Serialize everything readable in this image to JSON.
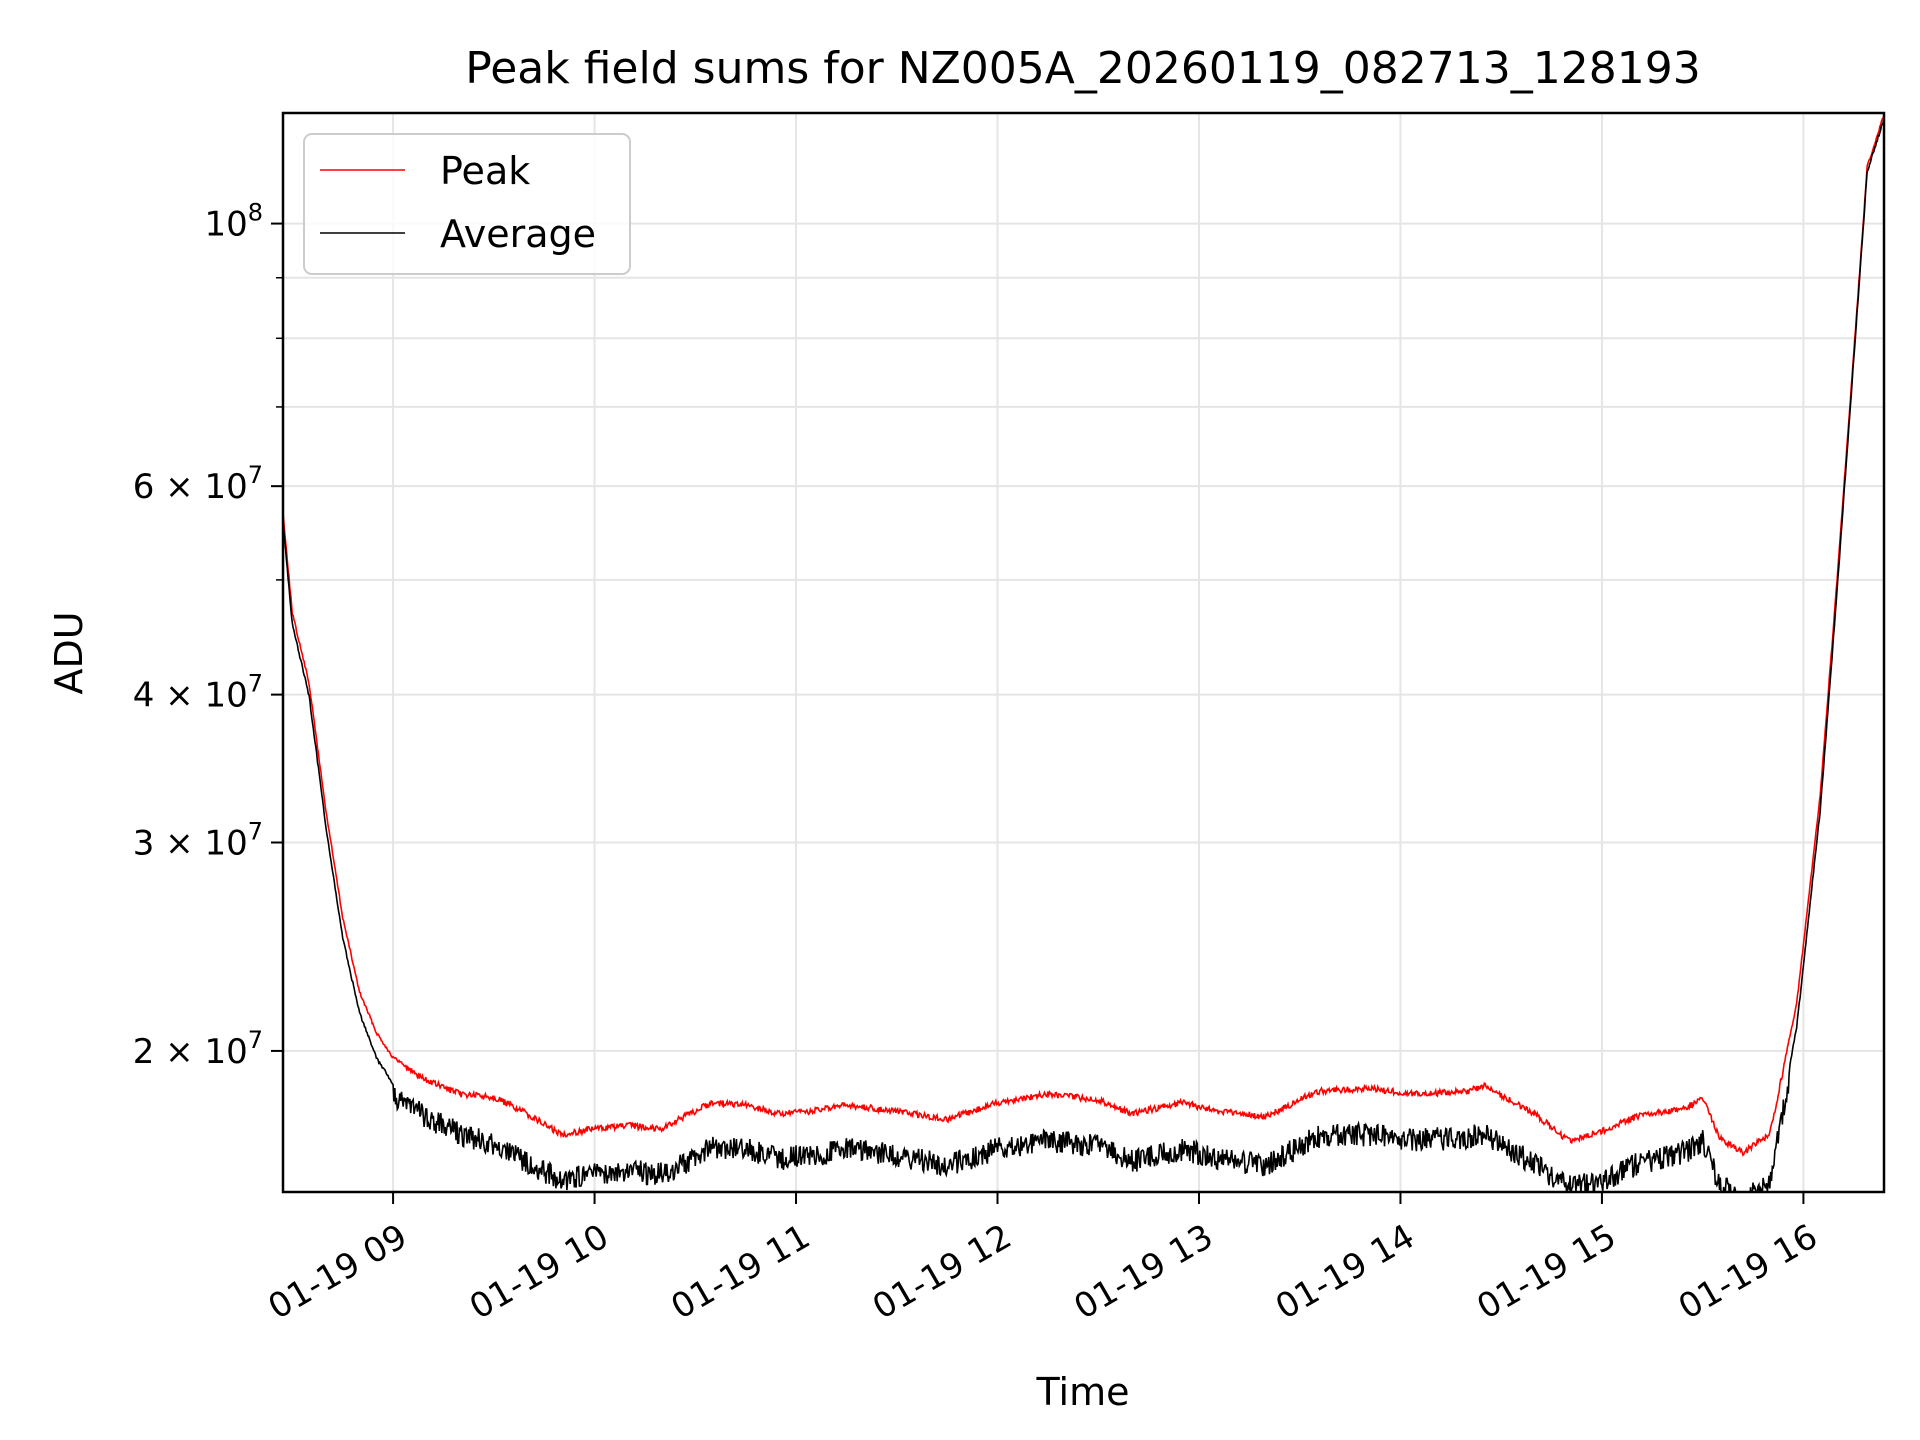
{
  "chart_data": {
    "type": "line",
    "title": "Peak field sums for NZ005A_20260119_082713_128193",
    "xlabel": "Time",
    "ylabel": "ADU",
    "yscale": "log",
    "ylim": [
      15200000,
      124000000
    ],
    "xlim": [
      "2026-01-19 08:27:13",
      "2026-01-19 16:24:00"
    ],
    "x_ticks": [
      {
        "label": "01-19 09",
        "x": "2026-01-19 09:00"
      },
      {
        "label": "01-19 10",
        "x": "2026-01-19 10:00"
      },
      {
        "label": "01-19 11",
        "x": "2026-01-19 11:00"
      },
      {
        "label": "01-19 12",
        "x": "2026-01-19 12:00"
      },
      {
        "label": "01-19 13",
        "x": "2026-01-19 13:00"
      },
      {
        "label": "01-19 14",
        "x": "2026-01-19 14:00"
      },
      {
        "label": "01-19 15",
        "x": "2026-01-19 15:00"
      },
      {
        "label": "01-19 16",
        "x": "2026-01-19 16:00"
      }
    ],
    "y_major_ticks": [
      {
        "value": 20000000,
        "base": "2 × 10",
        "exp": "7"
      },
      {
        "value": 30000000,
        "base": "3 × 10",
        "exp": "7"
      },
      {
        "value": 40000000,
        "base": "4 × 10",
        "exp": "7"
      },
      {
        "value": 60000000,
        "base": "6 × 10",
        "exp": "7"
      },
      {
        "value": 100000000,
        "base": "10",
        "exp": "8"
      }
    ],
    "y_minor_ticks": [
      50000000,
      70000000,
      80000000,
      90000000
    ],
    "grid": true,
    "legend_position": "top-left",
    "series": [
      {
        "name": "Peak",
        "color": "#ff0000",
        "points": [
          [
            "2026-01-19 08:27",
            58000000
          ],
          [
            "2026-01-19 08:30",
            47000000
          ],
          [
            "2026-01-19 08:35",
            41000000
          ],
          [
            "2026-01-19 08:40",
            32000000
          ],
          [
            "2026-01-19 08:45",
            26000000
          ],
          [
            "2026-01-19 08:50",
            22500000
          ],
          [
            "2026-01-19 08:55",
            20800000
          ],
          [
            "2026-01-19 09:00",
            19800000
          ],
          [
            "2026-01-19 09:10",
            19000000
          ],
          [
            "2026-01-19 09:20",
            18500000
          ],
          [
            "2026-01-19 09:30",
            18400000
          ],
          [
            "2026-01-19 09:40",
            17800000
          ],
          [
            "2026-01-19 09:50",
            17100000
          ],
          [
            "2026-01-19 10:00",
            17300000
          ],
          [
            "2026-01-19 10:10",
            17400000
          ],
          [
            "2026-01-19 10:20",
            17300000
          ],
          [
            "2026-01-19 10:30",
            17900000
          ],
          [
            "2026-01-19 10:35",
            18200000
          ],
          [
            "2026-01-19 10:45",
            18100000
          ],
          [
            "2026-01-19 10:55",
            17800000
          ],
          [
            "2026-01-19 11:05",
            17900000
          ],
          [
            "2026-01-19 11:15",
            18100000
          ],
          [
            "2026-01-19 11:30",
            17900000
          ],
          [
            "2026-01-19 11:45",
            17600000
          ],
          [
            "2026-01-19 12:00",
            18200000
          ],
          [
            "2026-01-19 12:15",
            18500000
          ],
          [
            "2026-01-19 12:30",
            18300000
          ],
          [
            "2026-01-19 12:40",
            17800000
          ],
          [
            "2026-01-19 12:55",
            18200000
          ],
          [
            "2026-01-19 13:05",
            17900000
          ],
          [
            "2026-01-19 13:20",
            17700000
          ],
          [
            "2026-01-19 13:35",
            18600000
          ],
          [
            "2026-01-19 13:50",
            18700000
          ],
          [
            "2026-01-19 14:05",
            18500000
          ],
          [
            "2026-01-19 14:20",
            18600000
          ],
          [
            "2026-01-19 14:25",
            18800000
          ],
          [
            "2026-01-19 14:40",
            17800000
          ],
          [
            "2026-01-19 14:50",
            16900000
          ],
          [
            "2026-01-19 15:00",
            17200000
          ],
          [
            "2026-01-19 15:10",
            17700000
          ],
          [
            "2026-01-19 15:25",
            18000000
          ],
          [
            "2026-01-19 15:30",
            18400000
          ],
          [
            "2026-01-19 15:35",
            17000000
          ],
          [
            "2026-01-19 15:42",
            16500000
          ],
          [
            "2026-01-19 15:50",
            17100000
          ],
          [
            "2026-01-19 15:58",
            22000000
          ],
          [
            "2026-01-19 16:05",
            33000000
          ],
          [
            "2026-01-19 16:10",
            50000000
          ],
          [
            "2026-01-19 16:15",
            78000000
          ],
          [
            "2026-01-19 16:19",
            112000000
          ],
          [
            "2026-01-19 16:24",
            124000000
          ]
        ]
      },
      {
        "name": "Average",
        "color": "#000000",
        "points": [
          [
            "2026-01-19 08:27",
            57000000
          ],
          [
            "2026-01-19 08:30",
            46000000
          ],
          [
            "2026-01-19 08:35",
            40000000
          ],
          [
            "2026-01-19 08:40",
            31000000
          ],
          [
            "2026-01-19 08:45",
            25000000
          ],
          [
            "2026-01-19 08:50",
            21600000
          ],
          [
            "2026-01-19 08:55",
            19800000
          ],
          [
            "2026-01-19 09:00",
            18800000
          ],
          [
            "2026-01-19 09:10",
            18000000
          ],
          [
            "2026-01-19 09:20",
            17400000
          ],
          [
            "2026-01-19 09:30",
            17100000
          ],
          [
            "2026-01-19 09:40",
            16500000
          ],
          [
            "2026-01-19 09:50",
            15900000
          ],
          [
            "2026-01-19 10:00",
            16100000
          ],
          [
            "2026-01-19 10:10",
            16200000
          ],
          [
            "2026-01-19 10:20",
            16100000
          ],
          [
            "2026-01-19 10:30",
            16600000
          ],
          [
            "2026-01-19 10:35",
            17000000
          ],
          [
            "2026-01-19 10:45",
            16900000
          ],
          [
            "2026-01-19 10:55",
            16600000
          ],
          [
            "2026-01-19 11:05",
            16700000
          ],
          [
            "2026-01-19 11:15",
            16900000
          ],
          [
            "2026-01-19 11:30",
            16700000
          ],
          [
            "2026-01-19 11:45",
            16400000
          ],
          [
            "2026-01-19 12:00",
            16900000
          ],
          [
            "2026-01-19 12:15",
            17200000
          ],
          [
            "2026-01-19 12:30",
            17000000
          ],
          [
            "2026-01-19 12:40",
            16500000
          ],
          [
            "2026-01-19 12:55",
            16900000
          ],
          [
            "2026-01-19 13:05",
            16600000
          ],
          [
            "2026-01-19 13:20",
            16400000
          ],
          [
            "2026-01-19 13:35",
            17300000
          ],
          [
            "2026-01-19 13:50",
            17400000
          ],
          [
            "2026-01-19 14:05",
            17200000
          ],
          [
            "2026-01-19 14:20",
            17300000
          ],
          [
            "2026-01-19 14:25",
            17400000
          ],
          [
            "2026-01-19 14:40",
            16400000
          ],
          [
            "2026-01-19 14:50",
            15700000
          ],
          [
            "2026-01-19 15:00",
            15900000
          ],
          [
            "2026-01-19 15:10",
            16400000
          ],
          [
            "2026-01-19 15:25",
            16800000
          ],
          [
            "2026-01-19 15:30",
            17200000
          ],
          [
            "2026-01-19 15:35",
            15800000
          ],
          [
            "2026-01-19 15:42",
            15300000
          ],
          [
            "2026-01-19 15:50",
            15800000
          ],
          [
            "2026-01-19 15:58",
            21000000
          ],
          [
            "2026-01-19 16:05",
            32000000
          ],
          [
            "2026-01-19 16:10",
            49000000
          ],
          [
            "2026-01-19 16:15",
            77000000
          ],
          [
            "2026-01-19 16:19",
            111000000
          ],
          [
            "2026-01-19 16:24",
            123000000
          ]
        ]
      }
    ]
  }
}
